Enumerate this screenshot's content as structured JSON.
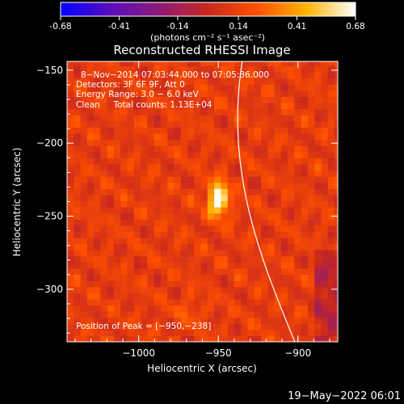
{
  "colorbar": {
    "tick_labels": [
      "-0.68",
      "-0.41",
      "-0.14",
      "0.14",
      "0.41",
      "0.68"
    ],
    "tick_values": [
      -0.68,
      -0.41,
      -0.14,
      0.14,
      0.41,
      0.68
    ],
    "range": [
      -0.68,
      0.68
    ],
    "unit_label": "(photons cm⁻² s⁻¹ asec⁻²)",
    "colors": [
      "#0000ff",
      "#5a0dbe",
      "#8c1a78",
      "#c8281e",
      "#ff5000",
      "#ffb400",
      "#ffffff"
    ]
  },
  "chart_data": {
    "type": "heatmap",
    "title": "Reconstructed RHESSI Image",
    "xlabel": "Heliocentric X (arcsec)",
    "ylabel": "Heliocentric Y (arcsec)",
    "xlim": [
      -1045,
      -875
    ],
    "ylim": [
      -336,
      -144
    ],
    "x_ticks": [
      -1000,
      -950,
      -900
    ],
    "x_tick_labels": [
      "−1000",
      "−950",
      "−900"
    ],
    "y_ticks": [
      -150,
      -200,
      -250,
      -300
    ],
    "y_tick_labels": [
      "−150",
      "−200",
      "−250",
      "−300"
    ],
    "info_lines": [
      "8−Nov−2014 07:03:44.000 to 07:05:36.000",
      "Detectors: 3F 6F 9F, Att 0",
      "Energy Range: 3.0 − 6.0 keV",
      "Clean     Total counts: 1.13E+04"
    ],
    "peak_label": "Position of Peak = [−950,−238]",
    "peak": [
      -950,
      -238
    ],
    "limb_curve": {
      "x": [
        -935,
        -946,
        -923,
        -902
      ],
      "y": [
        -144,
        -220,
        -280,
        -336
      ]
    },
    "background_level": 0.12
  },
  "footer_timestamp": "19−May−2022 06:01"
}
